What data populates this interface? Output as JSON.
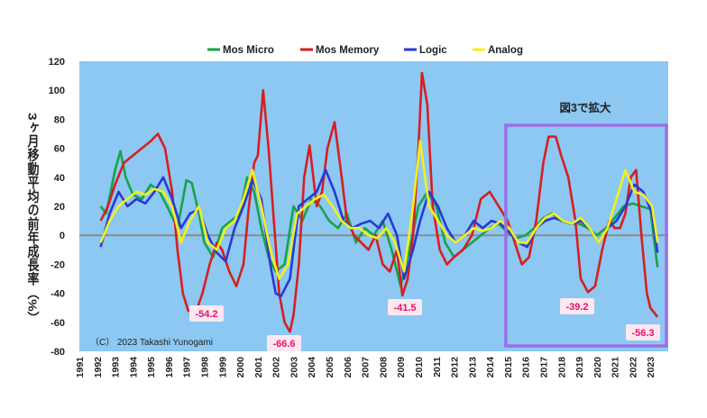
{
  "colors": {
    "plot_bg": "#8cc8f2",
    "zero_line": "#8a8a8a",
    "mos_micro": "#19a24a",
    "mos_memory": "#d61f1f",
    "logic": "#2a38d4",
    "analog": "#f2f21a",
    "annotation_text": "#e4126a",
    "annotation_bg": "#fde7f0",
    "highlight_box": "#9b6fe6"
  },
  "chart_data": {
    "type": "line",
    "ylabel": "3ヶ月移動平均の前年成長率（%）",
    "xlim": [
      1991,
      2024
    ],
    "ylim": [
      -80,
      120
    ],
    "yticks": [
      "-80",
      "-60",
      "-40",
      "-20",
      "0",
      "20",
      "40",
      "60",
      "80",
      "100",
      "120"
    ],
    "xticks": [
      "1991",
      "1992",
      "1993",
      "1994",
      "1995",
      "1996",
      "1997",
      "1998",
      "1999",
      "2000",
      "2001",
      "2002",
      "2003",
      "2004",
      "2005",
      "2006",
      "2007",
      "2008",
      "2009",
      "2010",
      "2011",
      "2012",
      "2013",
      "2014",
      "2015",
      "2016",
      "2017",
      "2018",
      "2019",
      "2020",
      "2021",
      "2022",
      "2023"
    ],
    "grid": false,
    "legend_position": "top",
    "copyright": "（C） 2023 Takashi Yunogami",
    "highlight_label": "図3で拡大",
    "annotations": [
      {
        "text": "-54.2",
        "x": 1997.4,
        "y": -54.2
      },
      {
        "text": "-66.6",
        "x": 2001.7,
        "y": -66.6
      },
      {
        "text": "-41.5",
        "x": 2009.1,
        "y": -41.5
      },
      {
        "text": "-39.2",
        "x": 2019.0,
        "y": -39.2
      },
      {
        "text": "-56.3",
        "x": 2023.0,
        "y": -56.3
      }
    ],
    "highlight_range": {
      "x": [
        2015.0,
        2024.1
      ],
      "y": [
        -80,
        78
      ]
    },
    "series": [
      {
        "name": "Mos Micro",
        "key": "mos_micro",
        "x": [
          1992.2,
          1992.5,
          1993.0,
          1993.3,
          1993.6,
          1994.0,
          1994.5,
          1995.0,
          1995.5,
          1996.0,
          1996.5,
          1997.0,
          1997.3,
          1997.7,
          1998.0,
          1998.5,
          1999.0,
          1999.5,
          2000.0,
          2000.4,
          2000.8,
          2001.2,
          2001.6,
          2002.0,
          2002.5,
          2003.0,
          2003.5,
          2004.0,
          2004.5,
          2005.0,
          2005.5,
          2006.0,
          2006.5,
          2007.0,
          2007.5,
          2008.0,
          2008.5,
          2009.0,
          2009.5,
          2010.0,
          2010.5,
          2011.0,
          2011.5,
          2012.0,
          2012.5,
          2013.0,
          2013.5,
          2014.0,
          2014.5,
          2015.0,
          2015.5,
          2016.0,
          2016.5,
          2017.0,
          2017.5,
          2018.0,
          2018.5,
          2019.0,
          2019.5,
          2020.0,
          2020.5,
          2021.0,
          2021.5,
          2022.0,
          2022.5,
          2023.0,
          2023.4
        ],
        "y": [
          20,
          15,
          45,
          58,
          40,
          28,
          25,
          35,
          30,
          18,
          5,
          38,
          36,
          15,
          -5,
          -15,
          5,
          10,
          15,
          40,
          30,
          5,
          -15,
          -25,
          -20,
          20,
          10,
          25,
          20,
          10,
          5,
          15,
          -5,
          5,
          0,
          10,
          -10,
          -35,
          -10,
          20,
          30,
          20,
          -5,
          -15,
          -10,
          -5,
          0,
          5,
          8,
          2,
          -2,
          0,
          5,
          12,
          15,
          10,
          8,
          8,
          5,
          0,
          5,
          12,
          20,
          22,
          20,
          18,
          -22
        ]
      },
      {
        "name": "Mos Memory",
        "key": "mos_memory",
        "x": [
          1992.2,
          1992.6,
          1993.0,
          1993.5,
          1994.0,
          1994.5,
          1995.0,
          1995.4,
          1995.8,
          1996.2,
          1996.5,
          1996.8,
          1997.1,
          1997.5,
          1997.9,
          1998.3,
          1998.7,
          1999.0,
          1999.4,
          1999.8,
          2000.2,
          2000.5,
          2000.8,
          2001.0,
          2001.3,
          2001.6,
          2001.9,
          2002.2,
          2002.5,
          2002.8,
          2003.0,
          2003.3,
          2003.6,
          2003.9,
          2004.3,
          2004.6,
          2004.9,
          2005.3,
          2005.7,
          2006.0,
          2006.4,
          2006.8,
          2007.2,
          2007.6,
          2008.0,
          2008.4,
          2008.8,
          2009.1,
          2009.4,
          2009.7,
          2010.0,
          2010.2,
          2010.5,
          2010.8,
          2011.2,
          2011.6,
          2012.0,
          2012.5,
          2013.0,
          2013.5,
          2014.0,
          2014.5,
          2015.0,
          2015.4,
          2015.8,
          2016.2,
          2016.6,
          2017.0,
          2017.3,
          2017.7,
          2018.0,
          2018.4,
          2018.8,
          2019.1,
          2019.5,
          2019.9,
          2020.3,
          2020.7,
          2021.0,
          2021.3,
          2021.6,
          2021.9,
          2022.2,
          2022.5,
          2022.8,
          2023.0,
          2023.4
        ],
        "y": [
          10,
          20,
          35,
          50,
          55,
          60,
          65,
          70,
          60,
          30,
          -10,
          -40,
          -52,
          -54.2,
          -40,
          -20,
          -5,
          -10,
          -25,
          -35,
          -20,
          20,
          50,
          55,
          100,
          60,
          10,
          -40,
          -60,
          -66.6,
          -55,
          -20,
          40,
          62,
          20,
          30,
          60,
          78,
          40,
          10,
          0,
          -5,
          -10,
          0,
          -20,
          -25,
          -10,
          -41.5,
          -30,
          0,
          60,
          112,
          90,
          20,
          -10,
          -20,
          -15,
          -10,
          0,
          25,
          30,
          20,
          10,
          -5,
          -20,
          -15,
          10,
          50,
          68,
          68,
          55,
          40,
          10,
          -30,
          -39.2,
          -35,
          -10,
          10,
          5,
          5,
          15,
          40,
          45,
          0,
          -40,
          -50,
          -56.3
        ]
      },
      {
        "name": "Logic",
        "key": "logic",
        "x": [
          1992.2,
          1992.7,
          1993.2,
          1993.7,
          1994.2,
          1994.7,
          1995.2,
          1995.7,
          1996.2,
          1996.7,
          1997.2,
          1997.7,
          1998.2,
          1998.7,
          1999.2,
          1999.7,
          2000.2,
          2000.7,
          2001.2,
          2001.7,
          2002.0,
          2002.3,
          2002.8,
          2003.3,
          2003.8,
          2004.3,
          2004.8,
          2005.3,
          2005.8,
          2006.3,
          2006.8,
          2007.3,
          2007.8,
          2008.3,
          2008.8,
          2009.2,
          2009.7,
          2010.1,
          2010.6,
          2011.1,
          2011.6,
          2012.1,
          2012.6,
          2013.1,
          2013.6,
          2014.1,
          2014.6,
          2015.1,
          2015.6,
          2016.1,
          2016.6,
          2017.1,
          2017.6,
          2018.1,
          2018.6,
          2019.1,
          2019.6,
          2020.1,
          2020.6,
          2021.1,
          2021.6,
          2022.1,
          2022.6,
          2023.1,
          2023.4
        ],
        "y": [
          -8,
          15,
          30,
          20,
          25,
          22,
          30,
          40,
          25,
          5,
          15,
          18,
          0,
          -12,
          -18,
          5,
          20,
          38,
          25,
          -20,
          -40,
          -42,
          -30,
          20,
          25,
          30,
          45,
          30,
          10,
          5,
          8,
          10,
          5,
          15,
          0,
          -30,
          -10,
          10,
          30,
          20,
          5,
          -5,
          0,
          10,
          5,
          10,
          8,
          2,
          -5,
          -8,
          5,
          10,
          12,
          10,
          8,
          10,
          5,
          -5,
          5,
          10,
          20,
          35,
          30,
          15,
          -12
        ]
      },
      {
        "name": "Analog",
        "key": "analog",
        "x": [
          1992.2,
          1992.7,
          1993.2,
          1993.7,
          1994.2,
          1994.7,
          1995.2,
          1995.7,
          1996.2,
          1996.7,
          1997.2,
          1997.7,
          1998.2,
          1998.7,
          1999.2,
          1999.7,
          2000.2,
          2000.7,
          2001.2,
          2001.7,
          2002.2,
          2002.7,
          2003.2,
          2003.7,
          2004.2,
          2004.7,
          2005.2,
          2005.7,
          2006.2,
          2006.7,
          2007.2,
          2007.7,
          2008.2,
          2008.7,
          2009.2,
          2009.7,
          2010.1,
          2010.6,
          2011.1,
          2011.6,
          2012.1,
          2012.6,
          2013.1,
          2013.6,
          2014.1,
          2014.6,
          2015.1,
          2015.6,
          2016.1,
          2016.6,
          2017.1,
          2017.6,
          2018.1,
          2018.6,
          2019.1,
          2019.6,
          2020.1,
          2020.6,
          2021.1,
          2021.6,
          2022.1,
          2022.6,
          2023.1,
          2023.4
        ],
        "y": [
          -5,
          10,
          20,
          25,
          30,
          28,
          32,
          30,
          20,
          -5,
          10,
          20,
          -5,
          -10,
          5,
          10,
          25,
          45,
          20,
          -10,
          -30,
          -20,
          15,
          20,
          25,
          28,
          20,
          10,
          5,
          5,
          0,
          -2,
          5,
          -5,
          -25,
          20,
          65,
          20,
          10,
          0,
          -5,
          0,
          5,
          3,
          5,
          10,
          5,
          -5,
          -5,
          5,
          12,
          15,
          10,
          8,
          12,
          5,
          -5,
          5,
          25,
          45,
          30,
          28,
          20,
          -5
        ]
      }
    ]
  },
  "legend": {
    "items": [
      {
        "label": "Mos Micro",
        "key": "mos_micro"
      },
      {
        "label": "Mos Memory",
        "key": "mos_memory"
      },
      {
        "label": "Logic",
        "key": "logic"
      },
      {
        "label": "Analog",
        "key": "analog"
      }
    ]
  }
}
